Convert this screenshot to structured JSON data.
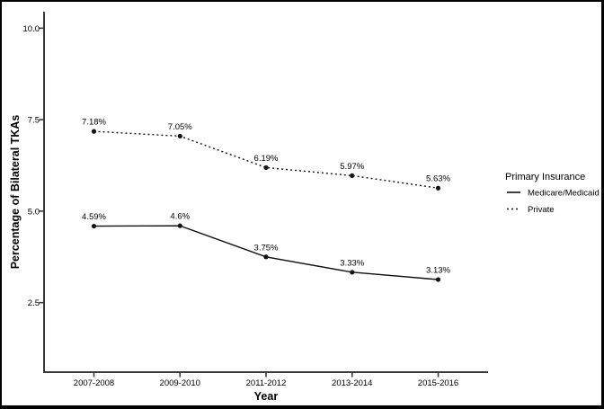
{
  "figure": {
    "background": "#ffffff",
    "border_color": "#000000"
  },
  "chart_data": {
    "type": "line",
    "title": "",
    "xlabel": "Year",
    "ylabel": "Percentage of Bilateral TKAs",
    "categories": [
      "2007-2008",
      "2009-2010",
      "2011-2012",
      "2013-2014",
      "2015-2016"
    ],
    "series": [
      {
        "name": "Medicare/Medicaid",
        "linestyle": "solid",
        "values": [
          4.59,
          4.6,
          3.75,
          3.33,
          3.13
        ],
        "point_labels": [
          "4.59%",
          "4.6%",
          "3.75%",
          "3.33%",
          "3.13%"
        ]
      },
      {
        "name": "Private",
        "linestyle": "dotted",
        "values": [
          7.18,
          7.05,
          6.19,
          5.97,
          5.63
        ],
        "point_labels": [
          "7.18%",
          "7.05%",
          "6.19%",
          "5.97%",
          "5.63%"
        ]
      }
    ],
    "y_tick_values": [
      2.5,
      5.0,
      7.5,
      10.0
    ],
    "y_tick_labels": [
      "2.5",
      "5.0",
      "7.5",
      "10.0"
    ],
    "ylim": [
      0.6,
      10.45
    ],
    "grid": false,
    "legend": {
      "title": "Primary Insurance",
      "position": "right",
      "entries": [
        "Medicare/Medicaid",
        "Private"
      ]
    },
    "colors": {
      "series": "#111111",
      "points": "#111111",
      "axis": "#3a3a3a",
      "tick_text": "#333333",
      "label_text": "#000000"
    }
  }
}
